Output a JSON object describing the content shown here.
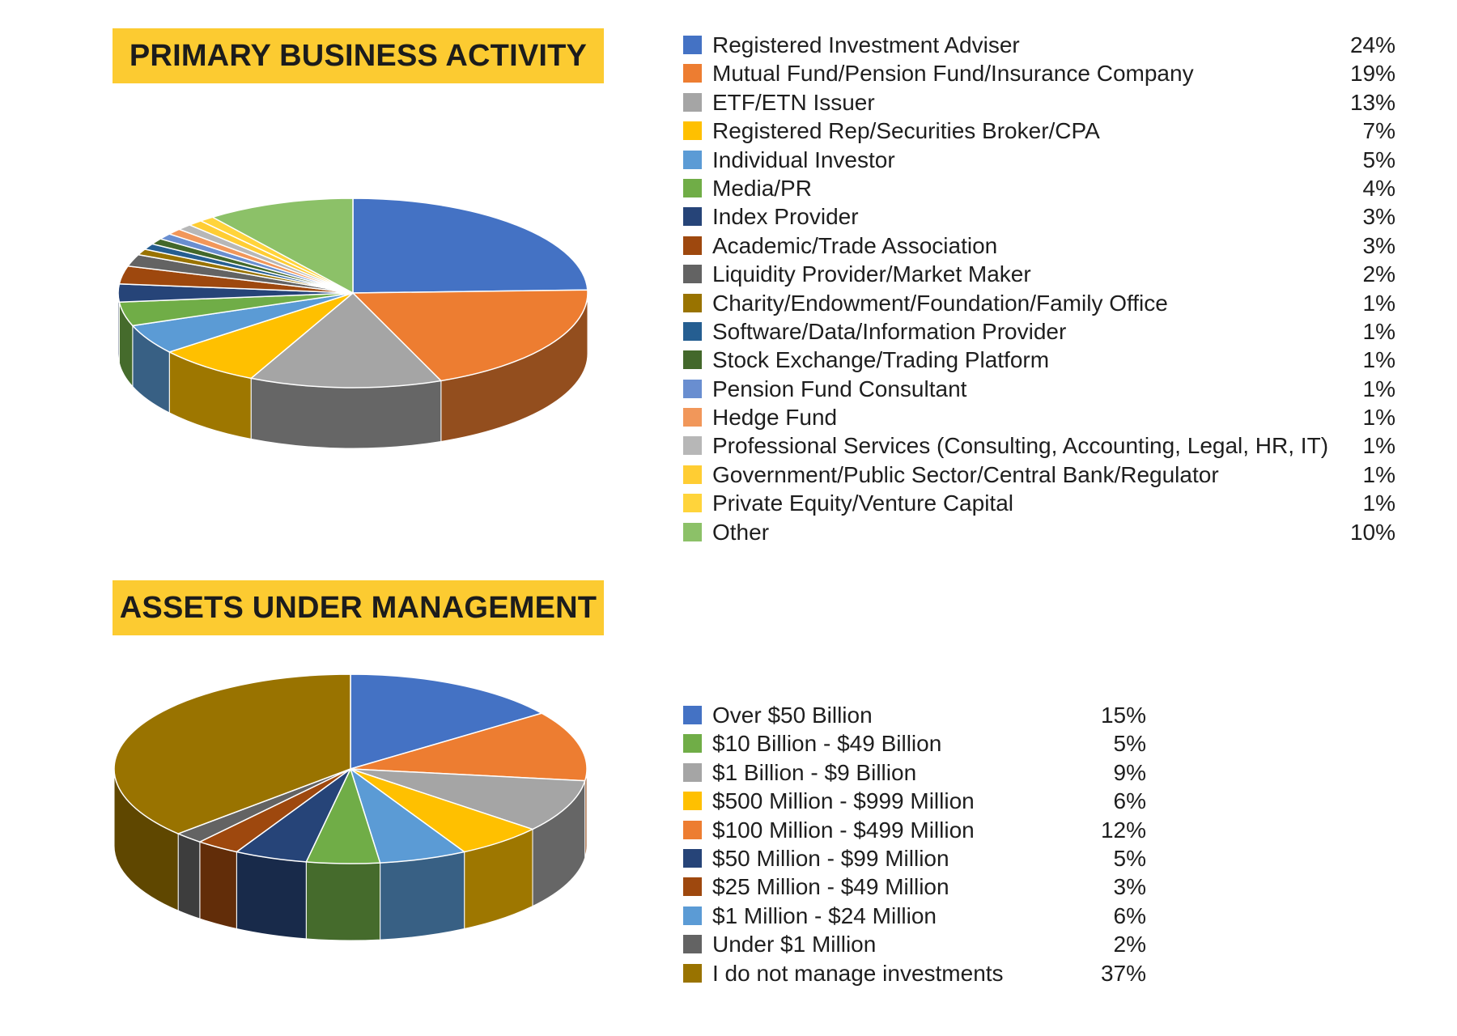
{
  "charts": [
    {
      "title": "PRIMARY BUSINESS ACTIVITY",
      "chart_data": {
        "type": "pie",
        "title": "PRIMARY BUSINESS ACTIVITY",
        "legend_position": "right",
        "slices": [
          {
            "label": "Registered Investment Adviser",
            "value_label": "24%",
            "value": 24,
            "color": "#4472c4"
          },
          {
            "label": "Mutual Fund/Pension Fund/Insurance Company",
            "value_label": "19%",
            "value": 19,
            "color": "#ed7d31"
          },
          {
            "label": "ETF/ETN Issuer",
            "value_label": "13%",
            "value": 13,
            "color": "#a5a5a5"
          },
          {
            "label": "Registered Rep/Securities Broker/CPA",
            "value_label": "7%",
            "value": 7,
            "color": "#ffc000"
          },
          {
            "label": "Individual Investor",
            "value_label": "5%",
            "value": 5,
            "color": "#5b9bd5"
          },
          {
            "label": "Media/PR",
            "value_label": "4%",
            "value": 4,
            "color": "#70ad47"
          },
          {
            "label": "Index Provider",
            "value_label": "3%",
            "value": 3,
            "color": "#264478"
          },
          {
            "label": "Academic/Trade Association",
            "value_label": "3%",
            "value": 3,
            "color": "#9e480e"
          },
          {
            "label": "Liquidity Provider/Market Maker",
            "value_label": "2%",
            "value": 2,
            "color": "#636363"
          },
          {
            "label": "Charity/Endowment/Foundation/Family Office",
            "value_label": "1%",
            "value": 1,
            "color": "#997300"
          },
          {
            "label": "Software/Data/Information Provider",
            "value_label": "1%",
            "value": 1,
            "color": "#255e91"
          },
          {
            "label": "Stock Exchange/Trading Platform",
            "value_label": "1%",
            "value": 1,
            "color": "#43682b"
          },
          {
            "label": "Pension Fund Consultant",
            "value_label": "1%",
            "value": 1,
            "color": "#698ed0"
          },
          {
            "label": "Hedge Fund",
            "value_label": "1%",
            "value": 1,
            "color": "#f1975a"
          },
          {
            "label": "Professional Services (Consulting, Accounting, Legal, HR, IT)",
            "value_label": "1%",
            "value": 1,
            "color": "#b7b7b7"
          },
          {
            "label": "Government/Public Sector/Central Bank/Regulator",
            "value_label": "1%",
            "value": 1,
            "color": "#ffcd33"
          },
          {
            "label": "Private Equity/Venture Capital",
            "value_label": "1%",
            "value": 1,
            "color": "#ffd43b"
          },
          {
            "label": "Other",
            "value_label": "10%",
            "value": 10,
            "color": "#8cc168"
          }
        ]
      }
    },
    {
      "title": "ASSETS UNDER MANAGEMENT",
      "chart_data": {
        "type": "pie",
        "title": "ASSETS UNDER MANAGEMENT",
        "legend_position": "right",
        "slices": [
          {
            "label": "Over $50 Billion",
            "value_label": "15%",
            "value": 15,
            "color": "#4472c4"
          },
          {
            "label": "$10 Billion - $49 Billion",
            "value_label": "5%",
            "value": 5,
            "color": "#70ad47"
          },
          {
            "label": "$1 Billion - $9 Billion",
            "value_label": "9%",
            "value": 9,
            "color": "#a5a5a5"
          },
          {
            "label": "$500 Million - $999 Million",
            "value_label": "6%",
            "value": 6,
            "color": "#ffc000"
          },
          {
            "label": "$100 Million - $499 Million",
            "value_label": "12%",
            "value": 12,
            "color": "#ed7d31"
          },
          {
            "label": "$50 Million - $99 Million",
            "value_label": "5%",
            "value": 5,
            "color": "#264478"
          },
          {
            "label": "$25 Million - $49 Million",
            "value_label": "3%",
            "value": 3,
            "color": "#9e480e"
          },
          {
            "label": "$1 Million - $24 Million",
            "value_label": "6%",
            "value": 6,
            "color": "#5b9bd5"
          },
          {
            "label": "Under $1 Million",
            "value_label": "2%",
            "value": 2,
            "color": "#636363"
          },
          {
            "label": "I do not manage investments",
            "value_label": "37%",
            "value": 37,
            "color": "#997300"
          }
        ],
        "pie_order": [
          0,
          4,
          2,
          3,
          7,
          1,
          5,
          6,
          8,
          9
        ]
      }
    }
  ]
}
